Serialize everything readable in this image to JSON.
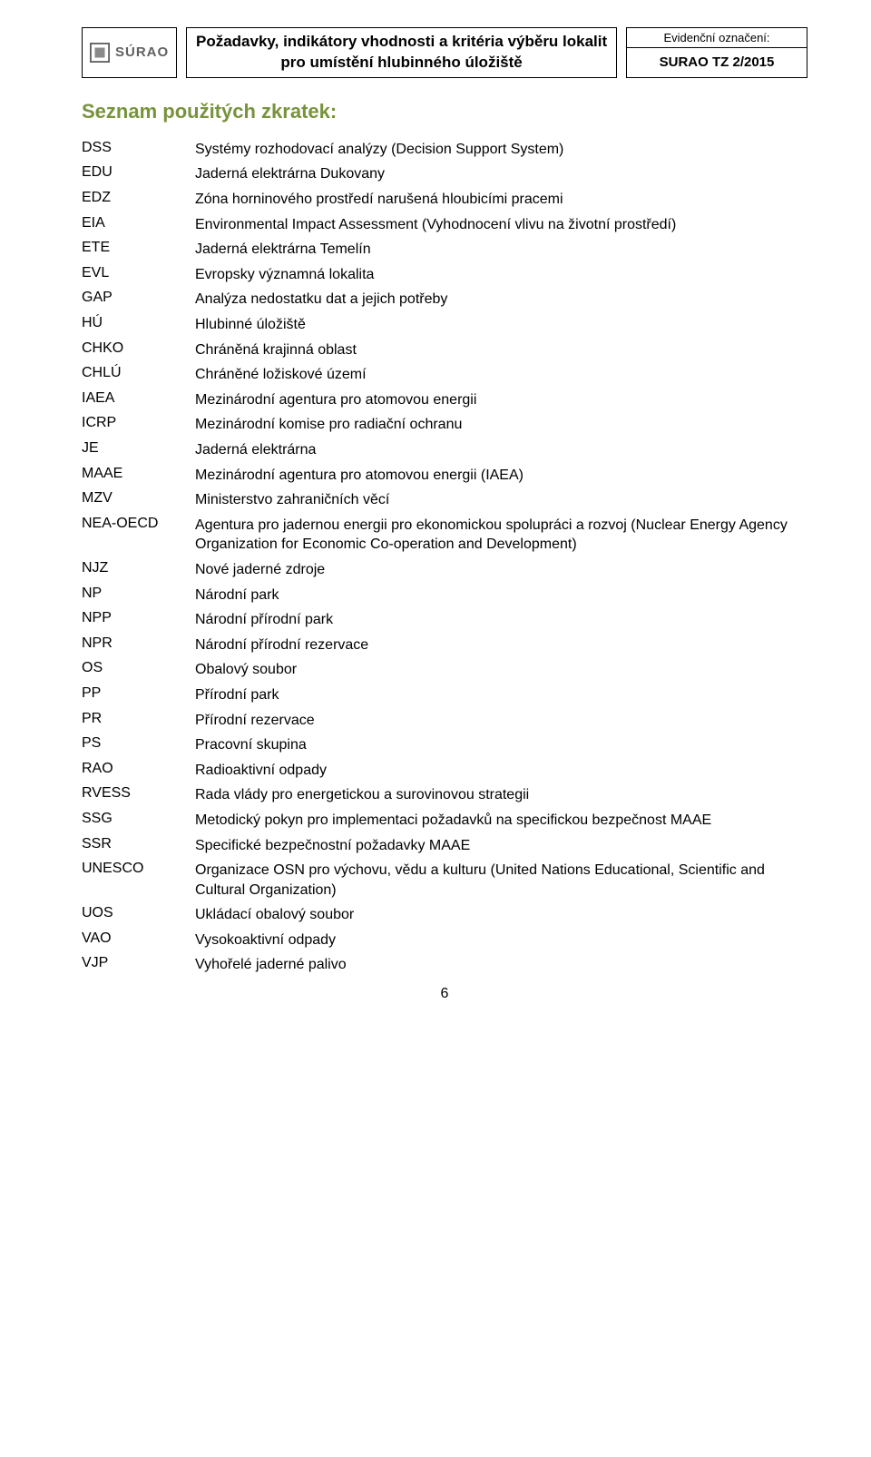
{
  "header": {
    "logo_text": "SÚRAO",
    "title": "Požadavky, indikátory vhodnosti a kritéria výběru lokalit pro umístění hlubinného úložiště",
    "right_top": "Evidenční označení:",
    "right_bottom": "SURAO TZ 2/2015"
  },
  "section_title": "Seznam použitých zkratek:",
  "abbrevs": [
    {
      "k": "DSS",
      "v": "Systémy rozhodovací analýzy (Decision Support System)"
    },
    {
      "k": "EDU",
      "v": "Jaderná elektrárna Dukovany"
    },
    {
      "k": "EDZ",
      "v": "Zóna horninového prostředí narušená hloubicími pracemi"
    },
    {
      "k": "EIA",
      "v": "Environmental Impact Assessment (Vyhodnocení vlivu na životní prostředí)"
    },
    {
      "k": "ETE",
      "v": "Jaderná elektrárna Temelín"
    },
    {
      "k": "EVL",
      "v": "Evropsky významná lokalita"
    },
    {
      "k": "GAP",
      "v": "Analýza nedostatku dat a jejich potřeby"
    },
    {
      "k": "HÚ",
      "v": "Hlubinné úložiště"
    },
    {
      "k": "CHKO",
      "v": "Chráněná krajinná oblast"
    },
    {
      "k": "CHLÚ",
      "v": "Chráněné ložiskové území"
    },
    {
      "k": "IAEA",
      "v": "Mezinárodní agentura pro atomovou energii"
    },
    {
      "k": "ICRP",
      "v": "Mezinárodní komise pro radiační ochranu"
    },
    {
      "k": "JE",
      "v": "Jaderná elektrárna"
    },
    {
      "k": "MAAE",
      "v": "Mezinárodní agentura pro atomovou energii (IAEA)"
    },
    {
      "k": "MZV",
      "v": "Ministerstvo zahraničních věcí"
    },
    {
      "k": "NEA-OECD",
      "v": "Agentura pro jadernou energii pro ekonomickou spolupráci a rozvoj (Nuclear Energy Agency Organization for Economic Co-operation and Development)"
    },
    {
      "k": "NJZ",
      "v": "Nové jaderné zdroje"
    },
    {
      "k": "NP",
      "v": "Národní park"
    },
    {
      "k": "NPP",
      "v": "Národní přírodní park"
    },
    {
      "k": "NPR",
      "v": "Národní přírodní rezervace"
    },
    {
      "k": "OS",
      "v": "Obalový soubor"
    },
    {
      "k": "PP",
      "v": "Přírodní park"
    },
    {
      "k": "PR",
      "v": "Přírodní rezervace"
    },
    {
      "k": "PS",
      "v": "Pracovní skupina"
    },
    {
      "k": "RAO",
      "v": "Radioaktivní odpady"
    },
    {
      "k": "RVESS",
      "v": "Rada vlády pro energetickou a surovinovou strategii"
    },
    {
      "k": "SSG",
      "v": "Metodický pokyn pro implementaci požadavků na specifickou bezpečnost MAAE"
    },
    {
      "k": "SSR",
      "v": "Specifické bezpečnostní požadavky MAAE"
    },
    {
      "k": "UNESCO",
      "v": "Organizace OSN pro výchovu, vědu a kulturu (United Nations Educational, Scientific and Cultural Organization)"
    },
    {
      "k": "UOS",
      "v": "Ukládací obalový soubor"
    },
    {
      "k": "VAO",
      "v": "Vysokoaktivní odpady"
    },
    {
      "k": "VJP",
      "v": "Vyhořelé jaderné palivo"
    }
  ],
  "page_number": "6",
  "colors": {
    "section_title": "#77933c",
    "logo_text": "#606060",
    "logo_border": "#606060",
    "logo_inner": "#8a8a8a",
    "text": "#000000",
    "background": "#ffffff"
  }
}
